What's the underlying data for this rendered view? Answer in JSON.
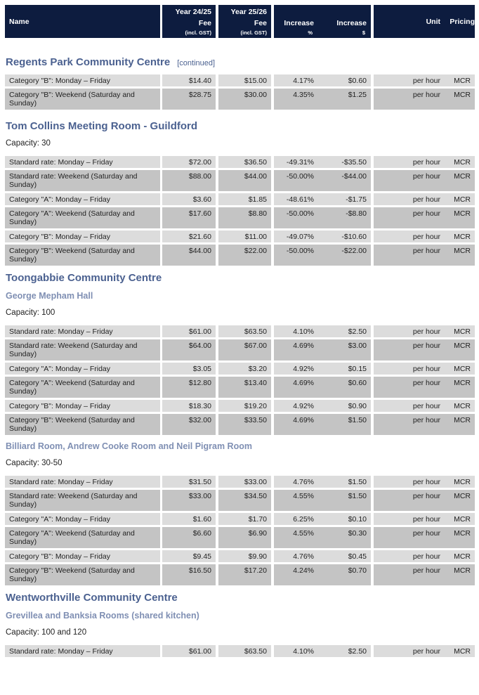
{
  "header": {
    "name": "Name",
    "fee2425_line1": "Year 24/25",
    "fee2425_line2": "Fee",
    "fee2425_sub": "(incl. GST)",
    "fee2526_line1": "Year 25/26",
    "fee2526_line2": "Fee",
    "fee2526_sub": "(incl. GST)",
    "inc_pct_label": "Increase",
    "inc_pct_sub": "%",
    "inc_amt_label": "Increase",
    "inc_amt_sub": "$",
    "unit": "Unit",
    "pricing": "Pricing"
  },
  "sections": {
    "regents": {
      "title": "Regents Park Community Centre",
      "continued": "[continued]",
      "rows": [
        {
          "name": "Category \"B\": Monday – Friday",
          "fee2425": "$14.40",
          "fee2526": "$15.00",
          "inc_pct": "4.17%",
          "inc_amt": "$0.60",
          "unit": "per hour",
          "pricing": "MCR"
        },
        {
          "name": "Category \"B\": Weekend (Saturday and Sunday)",
          "fee2425": "$28.75",
          "fee2526": "$30.00",
          "inc_pct": "4.35%",
          "inc_amt": "$1.25",
          "unit": "per hour",
          "pricing": "MCR"
        }
      ]
    },
    "tomcollins": {
      "title": "Tom Collins Meeting Room - Guildford",
      "capacity": "Capacity: 30",
      "rows": [
        {
          "name": "Standard rate: Monday – Friday",
          "fee2425": "$72.00",
          "fee2526": "$36.50",
          "inc_pct": "-49.31%",
          "inc_amt": "-$35.50",
          "unit": "per hour",
          "pricing": "MCR"
        },
        {
          "name": "Standard rate: Weekend (Saturday and Sunday)",
          "fee2425": "$88.00",
          "fee2526": "$44.00",
          "inc_pct": "-50.00%",
          "inc_amt": "-$44.00",
          "unit": "per hour",
          "pricing": "MCR"
        },
        {
          "name": "Category \"A\": Monday – Friday",
          "fee2425": "$3.60",
          "fee2526": "$1.85",
          "inc_pct": "-48.61%",
          "inc_amt": "-$1.75",
          "unit": "per hour",
          "pricing": "MCR"
        },
        {
          "name": "Category \"A\": Weekend (Saturday and Sunday)",
          "fee2425": "$17.60",
          "fee2526": "$8.80",
          "inc_pct": "-50.00%",
          "inc_amt": "-$8.80",
          "unit": "per hour",
          "pricing": "MCR"
        },
        {
          "name": "Category \"B\": Monday – Friday",
          "fee2425": "$21.60",
          "fee2526": "$11.00",
          "inc_pct": "-49.07%",
          "inc_amt": "-$10.60",
          "unit": "per hour",
          "pricing": "MCR"
        },
        {
          "name": "Category \"B\": Weekend (Saturday and Sunday)",
          "fee2425": "$44.00",
          "fee2526": "$22.00",
          "inc_pct": "-50.00%",
          "inc_amt": "-$22.00",
          "unit": "per hour",
          "pricing": "MCR"
        }
      ]
    },
    "toongabbie": {
      "title": "Toongabbie Community Centre",
      "mepham": {
        "title": "George Mepham Hall",
        "capacity": "Capacity: 100",
        "rows": [
          {
            "name": "Standard rate: Monday – Friday",
            "fee2425": "$61.00",
            "fee2526": "$63.50",
            "inc_pct": "4.10%",
            "inc_amt": "$2.50",
            "unit": "per hour",
            "pricing": "MCR"
          },
          {
            "name": "Standard rate: Weekend (Saturday and Sunday)",
            "fee2425": "$64.00",
            "fee2526": "$67.00",
            "inc_pct": "4.69%",
            "inc_amt": "$3.00",
            "unit": "per hour",
            "pricing": "MCR"
          },
          {
            "name": "Category \"A\": Monday – Friday",
            "fee2425": "$3.05",
            "fee2526": "$3.20",
            "inc_pct": "4.92%",
            "inc_amt": "$0.15",
            "unit": "per hour",
            "pricing": "MCR"
          },
          {
            "name": "Category \"A\": Weekend (Saturday and Sunday)",
            "fee2425": "$12.80",
            "fee2526": "$13.40",
            "inc_pct": "4.69%",
            "inc_amt": "$0.60",
            "unit": "per hour",
            "pricing": "MCR"
          },
          {
            "name": "Category \"B\": Monday – Friday",
            "fee2425": "$18.30",
            "fee2526": "$19.20",
            "inc_pct": "4.92%",
            "inc_amt": "$0.90",
            "unit": "per hour",
            "pricing": "MCR"
          },
          {
            "name": "Category \"B\": Weekend (Saturday and Sunday)",
            "fee2425": "$32.00",
            "fee2526": "$33.50",
            "inc_pct": "4.69%",
            "inc_amt": "$1.50",
            "unit": "per hour",
            "pricing": "MCR"
          }
        ]
      },
      "billiard": {
        "title": "Billiard Room, Andrew Cooke Room and Neil Pigram Room",
        "capacity": "Capacity: 30-50",
        "rows": [
          {
            "name": "Standard rate: Monday – Friday",
            "fee2425": "$31.50",
            "fee2526": "$33.00",
            "inc_pct": "4.76%",
            "inc_amt": "$1.50",
            "unit": "per hour",
            "pricing": "MCR"
          },
          {
            "name": "Standard rate: Weekend (Saturday and Sunday)",
            "fee2425": "$33.00",
            "fee2526": "$34.50",
            "inc_pct": "4.55%",
            "inc_amt": "$1.50",
            "unit": "per hour",
            "pricing": "MCR"
          },
          {
            "name": "Category \"A\": Monday – Friday",
            "fee2425": "$1.60",
            "fee2526": "$1.70",
            "inc_pct": "6.25%",
            "inc_amt": "$0.10",
            "unit": "per hour",
            "pricing": "MCR"
          },
          {
            "name": "Category \"A\": Weekend (Saturday and Sunday)",
            "fee2425": "$6.60",
            "fee2526": "$6.90",
            "inc_pct": "4.55%",
            "inc_amt": "$0.30",
            "unit": "per hour",
            "pricing": "MCR"
          },
          {
            "name": "Category \"B\": Monday – Friday",
            "fee2425": "$9.45",
            "fee2526": "$9.90",
            "inc_pct": "4.76%",
            "inc_amt": "$0.45",
            "unit": "per hour",
            "pricing": "MCR"
          },
          {
            "name": "Category \"B\": Weekend (Saturday and Sunday)",
            "fee2425": "$16.50",
            "fee2526": "$17.20",
            "inc_pct": "4.24%",
            "inc_amt": "$0.70",
            "unit": "per hour",
            "pricing": "MCR"
          }
        ]
      }
    },
    "wentworthville": {
      "title": "Wentworthville Community Centre",
      "grevillea": {
        "title": "Grevillea and Banksia Rooms (shared kitchen)",
        "capacity": "Capacity: 100 and 120",
        "rows": [
          {
            "name": "Standard rate: Monday – Friday",
            "fee2425": "$61.00",
            "fee2526": "$63.50",
            "inc_pct": "4.10%",
            "inc_amt": "$2.50",
            "unit": "per hour",
            "pricing": "MCR"
          }
        ]
      }
    }
  }
}
